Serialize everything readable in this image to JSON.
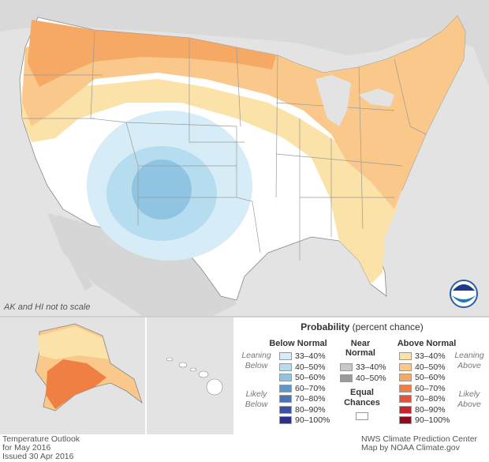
{
  "map": {
    "scale_note": "AK and HI not to scale",
    "logo_text": "NOAA"
  },
  "legend": {
    "title": "Probability",
    "title_suffix": "(percent chance)",
    "below": {
      "heading": "Below Normal",
      "leaning_label": "Leaning Below",
      "likely_label": "Likely Below",
      "items": [
        {
          "label": "33–40%",
          "color": "#d6ecf7"
        },
        {
          "label": "40–50%",
          "color": "#b5dcef"
        },
        {
          "label": "50–60%",
          "color": "#8fc4e2"
        },
        {
          "label": "60–70%",
          "color": "#5f97c9"
        },
        {
          "label": "70–80%",
          "color": "#4b73b8"
        },
        {
          "label": "80–90%",
          "color": "#3a52a6"
        },
        {
          "label": "90–100%",
          "color": "#2b2f8e"
        }
      ]
    },
    "near": {
      "heading": "Near Normal",
      "items": [
        {
          "label": "33–40%",
          "color": "#c8c8c8"
        },
        {
          "label": "40–50%",
          "color": "#9a9a9a"
        }
      ],
      "equal_label": "Equal Chances"
    },
    "above": {
      "heading": "Above Normal",
      "leaning_label": "Leaning Above",
      "likely_label": "Likely Above",
      "items": [
        {
          "label": "33–40%",
          "color": "#fbe2a8"
        },
        {
          "label": "40–50%",
          "color": "#f9c88a"
        },
        {
          "label": "50–60%",
          "color": "#f6a865"
        },
        {
          "label": "60–70%",
          "color": "#ef7f43"
        },
        {
          "label": "70–80%",
          "color": "#e2533a"
        },
        {
          "label": "80–90%",
          "color": "#c8222b"
        },
        {
          "label": "90–100%",
          "color": "#8e0c1c"
        }
      ]
    }
  },
  "footer": {
    "left_line1": "Temperature Outlook",
    "left_line2": "for May 2016",
    "left_line3": "Issued 30 Apr 2016",
    "right_line1": "NWS Climate Prediction Center",
    "right_line2": "Map by NOAA Climate.gov"
  }
}
